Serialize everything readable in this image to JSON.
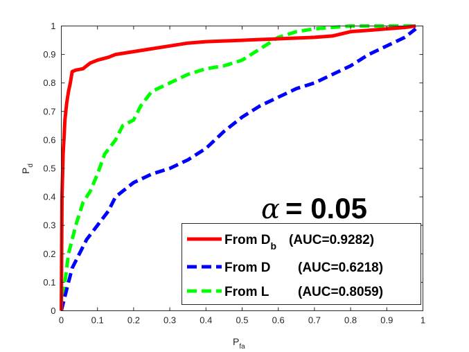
{
  "chart_data": {
    "type": "line",
    "xlabel": "P",
    "xlabel_sub": "fa",
    "ylabel": "P",
    "ylabel_sub": "d",
    "xlim": [
      0,
      1
    ],
    "ylim": [
      0,
      1
    ],
    "xticks": [
      "0",
      "0.1",
      "0.2",
      "0.3",
      "0.4",
      "0.5",
      "0.6",
      "0.7",
      "0.8",
      "0.9",
      "1"
    ],
    "yticks": [
      "0",
      "0.1",
      "0.2",
      "0.3",
      "0.4",
      "0.5",
      "0.6",
      "0.7",
      "0.8",
      "0.9",
      "1"
    ],
    "grid": false,
    "legend_placement": "bottom-right",
    "annotation": {
      "symbol": "α",
      "text": "= 0.05"
    },
    "series": [
      {
        "name_main": "From D",
        "name_sub": "b",
        "auc": "(AUC=0.9282)",
        "color": "#ff0000",
        "style": "solid",
        "x": [
          0,
          0.002,
          0.005,
          0.008,
          0.01,
          0.015,
          0.02,
          0.025,
          0.03,
          0.04,
          0.06,
          0.08,
          0.1,
          0.13,
          0.15,
          0.2,
          0.25,
          0.3,
          0.35,
          0.4,
          0.5,
          0.6,
          0.7,
          0.75,
          0.8,
          0.85,
          0.9,
          0.95,
          0.98
        ],
        "y": [
          0,
          0.4,
          0.55,
          0.62,
          0.67,
          0.73,
          0.77,
          0.8,
          0.84,
          0.845,
          0.85,
          0.87,
          0.88,
          0.89,
          0.9,
          0.91,
          0.92,
          0.93,
          0.94,
          0.945,
          0.95,
          0.955,
          0.96,
          0.965,
          0.98,
          0.985,
          0.99,
          0.995,
          1.0
        ]
      },
      {
        "name_main": "From D",
        "name_sub": "",
        "auc": "(AUC=0.6218)",
        "color": "#0000ff",
        "style": "dashed",
        "x": [
          0,
          0.01,
          0.02,
          0.03,
          0.05,
          0.07,
          0.1,
          0.13,
          0.15,
          0.17,
          0.2,
          0.25,
          0.3,
          0.35,
          0.4,
          0.45,
          0.5,
          0.55,
          0.6,
          0.65,
          0.7,
          0.75,
          0.8,
          0.85,
          0.9,
          0.95,
          0.98
        ],
        "y": [
          0,
          0.05,
          0.1,
          0.15,
          0.2,
          0.25,
          0.3,
          0.35,
          0.4,
          0.42,
          0.45,
          0.48,
          0.5,
          0.53,
          0.57,
          0.63,
          0.68,
          0.72,
          0.75,
          0.78,
          0.8,
          0.83,
          0.86,
          0.9,
          0.93,
          0.96,
          0.99
        ]
      },
      {
        "name_main": "From L",
        "name_sub": "",
        "auc": "(AUC=0.8059)",
        "color": "#00ff00",
        "style": "dashed",
        "x": [
          0,
          0.01,
          0.02,
          0.04,
          0.06,
          0.08,
          0.1,
          0.12,
          0.15,
          0.17,
          0.2,
          0.22,
          0.25,
          0.3,
          0.35,
          0.4,
          0.45,
          0.5,
          0.55,
          0.6,
          0.65,
          0.7,
          0.8,
          0.9,
          0.98
        ],
        "y": [
          0,
          0.1,
          0.2,
          0.3,
          0.38,
          0.42,
          0.48,
          0.55,
          0.6,
          0.65,
          0.67,
          0.72,
          0.77,
          0.8,
          0.83,
          0.85,
          0.86,
          0.88,
          0.92,
          0.96,
          0.98,
          0.99,
          1.0,
          1.0,
          1.0
        ]
      }
    ]
  }
}
